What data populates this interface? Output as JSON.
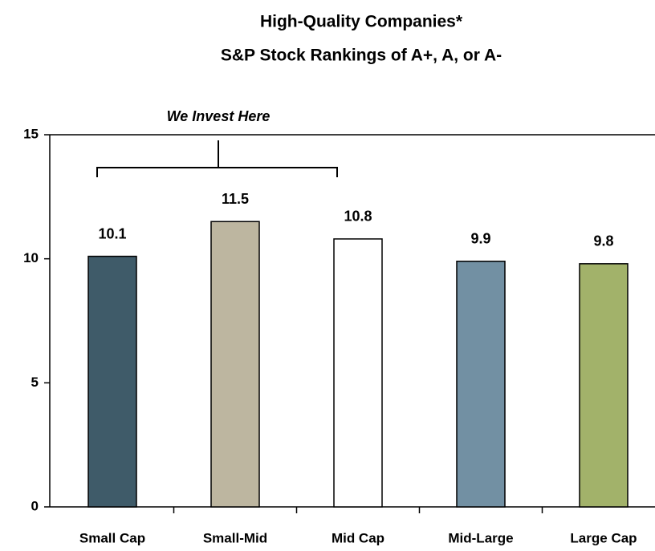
{
  "chart_data": {
    "type": "bar",
    "title": "High-Quality Companies*",
    "subtitle": "S&P Stock Rankings of A+, A, or A-",
    "annotation": "We Invest Here",
    "categories": [
      "Small Cap",
      "Small-Mid",
      "Mid Cap",
      "Mid-Large",
      "Large Cap"
    ],
    "values": [
      10.1,
      11.5,
      10.8,
      9.9,
      9.8
    ],
    "colors": [
      "#3f5b69",
      "#bdb6a0",
      "#ffffff",
      "#7290a3",
      "#a2b26a"
    ],
    "ylim": [
      0,
      15
    ],
    "yticks": [
      0,
      5,
      10,
      15
    ]
  }
}
